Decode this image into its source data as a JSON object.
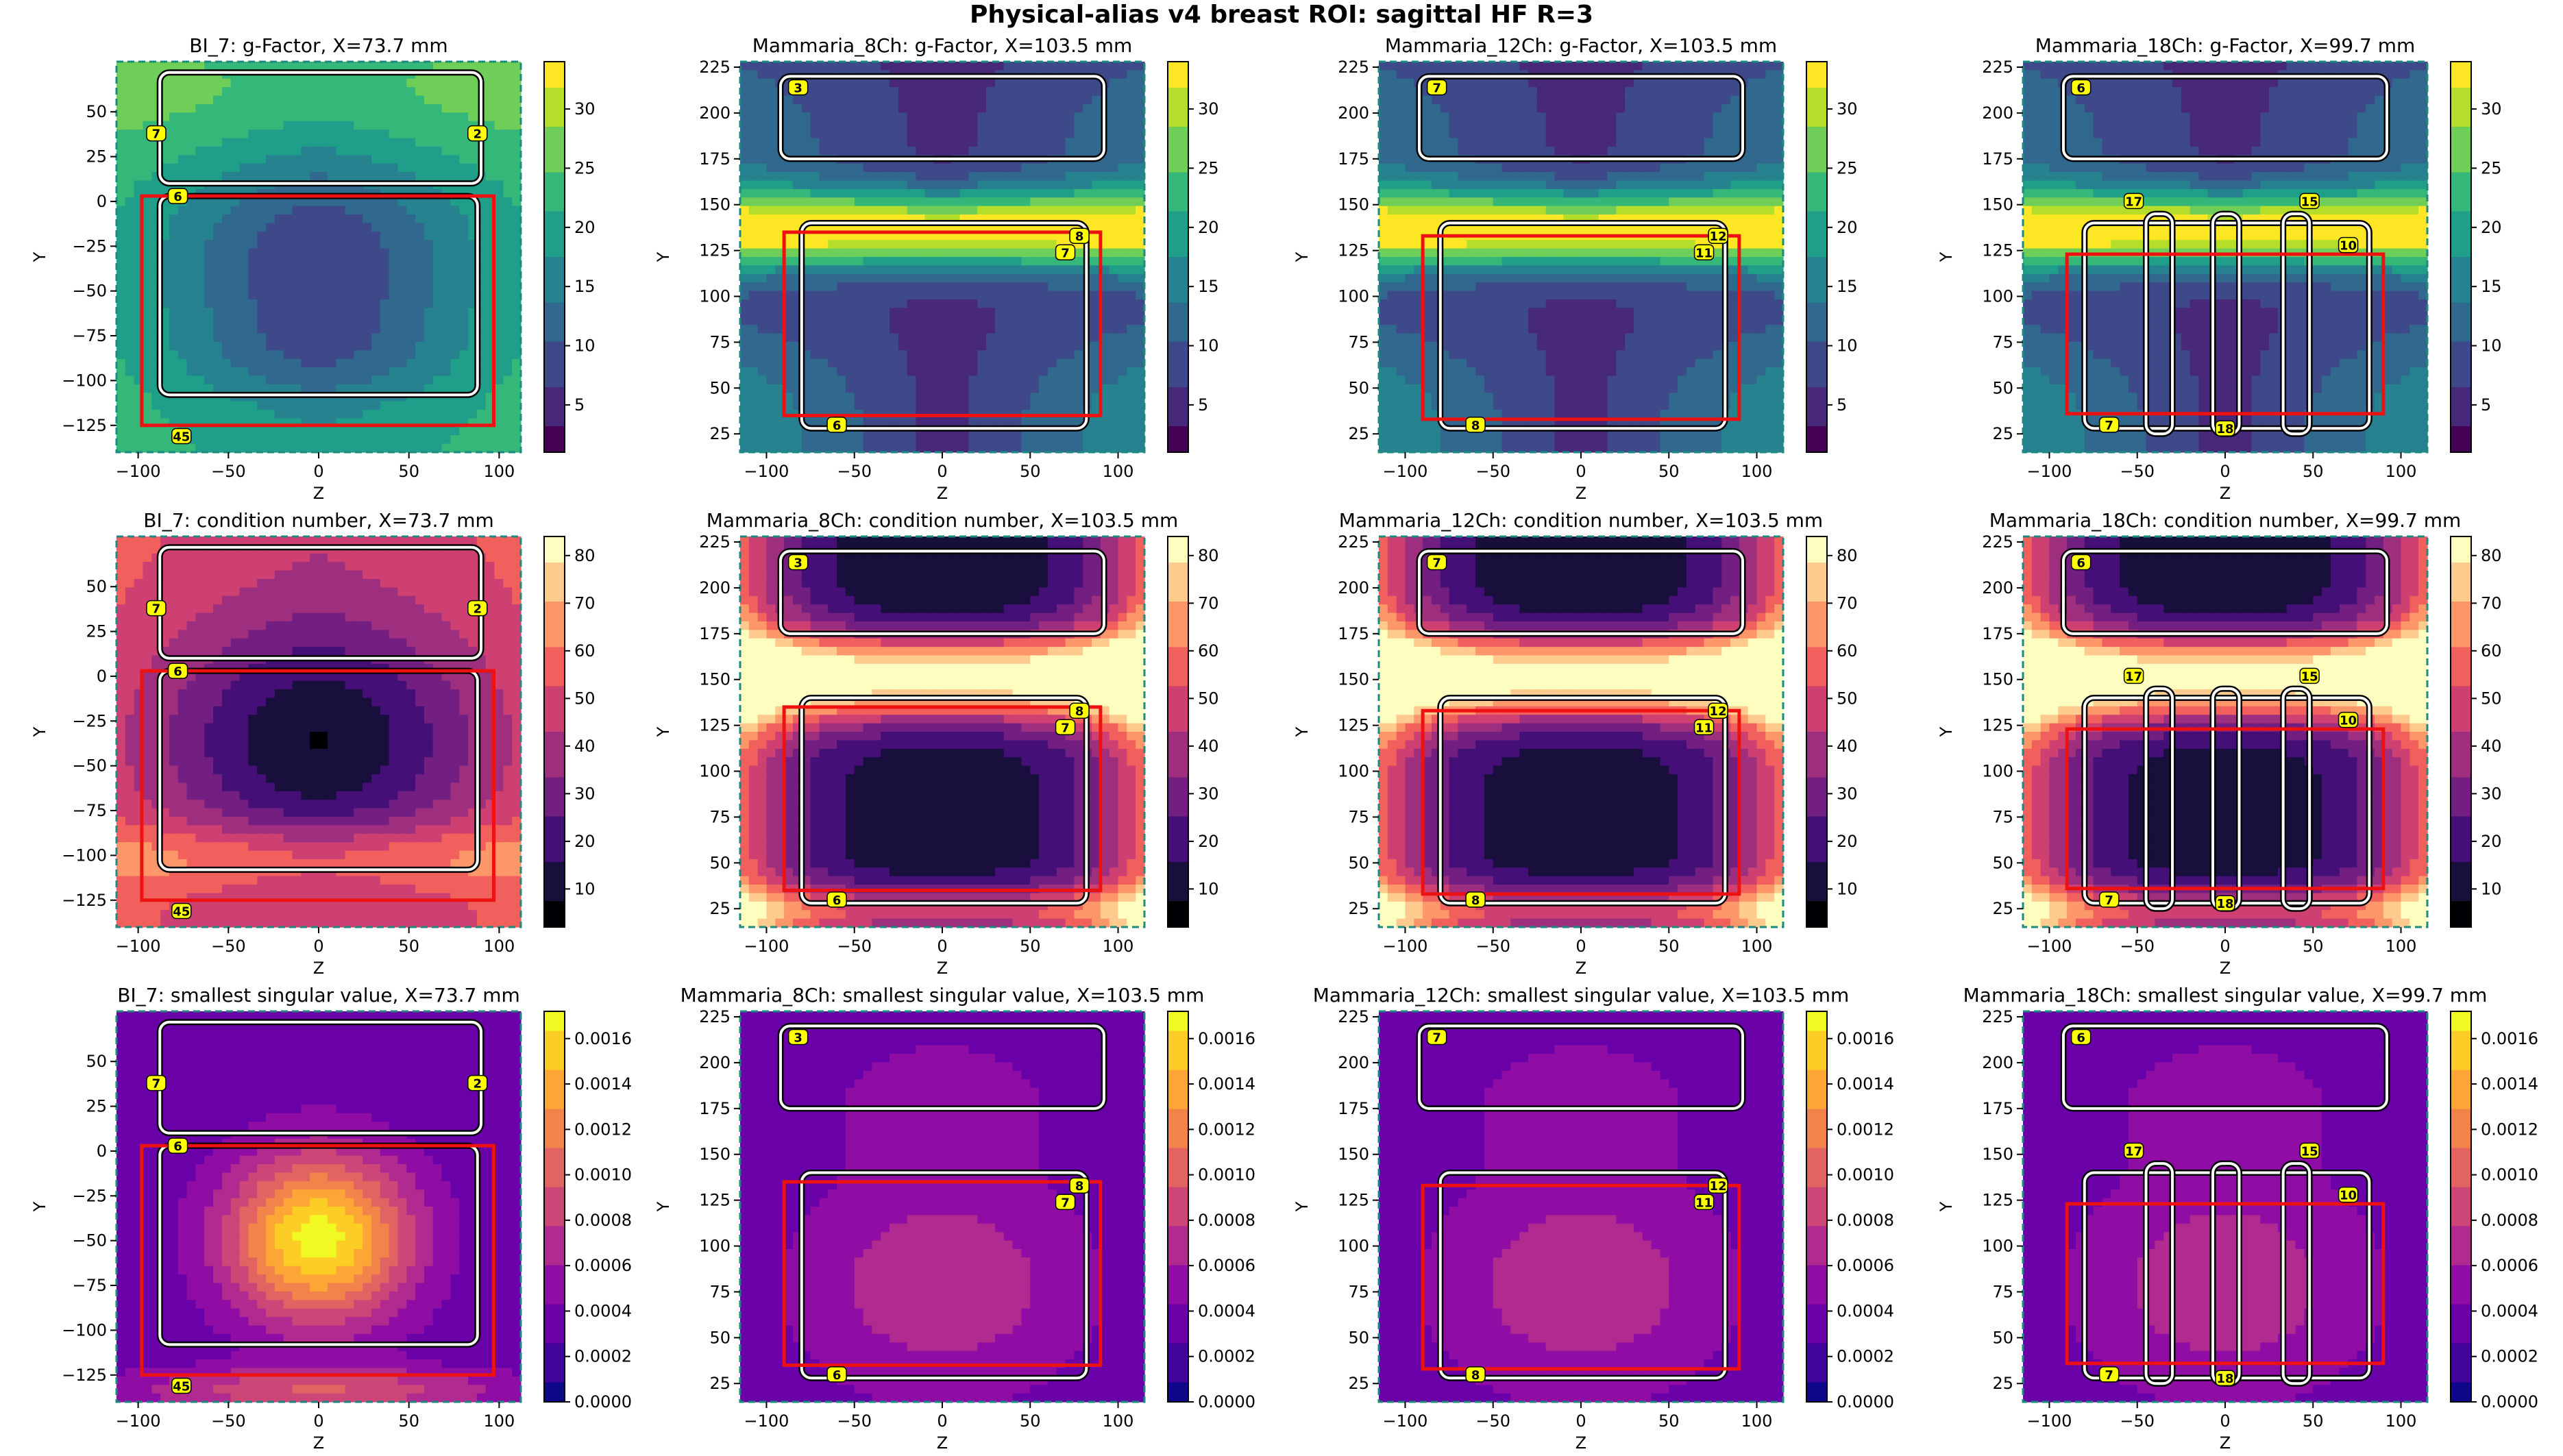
{
  "figure": {
    "title": "Physical-alias v4 breast ROI: sagittal HF R=3"
  },
  "colors": {
    "roi": "#ee1111",
    "coil_outer": "#000000",
    "coil_inner": "#ffffff",
    "label_fill": "#ffff00",
    "frame": "#1c8a7e"
  },
  "colormaps": {
    "viridis": [
      "#440154",
      "#482878",
      "#3e4989",
      "#31688e",
      "#26828e",
      "#1f9e89",
      "#35b779",
      "#6ece58",
      "#b5de2b",
      "#fde725"
    ],
    "magma": [
      "#000004",
      "#180f3d",
      "#440f76",
      "#721f81",
      "#9e2f7f",
      "#cd4071",
      "#f1605d",
      "#fd9668",
      "#feca8d",
      "#fcfdbf"
    ],
    "plasma": [
      "#0d0887",
      "#41049d",
      "#6a00a8",
      "#8f0da4",
      "#b12a90",
      "#cc4778",
      "#e16462",
      "#f2844b",
      "#fca636",
      "#fcce25",
      "#f0f921"
    ]
  },
  "chart_data": [
    {
      "type": "heatmap",
      "title": "BI_7: g-Factor, X=73.7 mm",
      "xlabel": "Z",
      "ylabel": "Y",
      "colormap": "viridis",
      "xlim": [
        -112,
        112
      ],
      "ylim": [
        -140,
        78
      ],
      "xticks": [
        -100,
        -50,
        0,
        50,
        100
      ],
      "yticks": [
        50,
        25,
        0,
        -25,
        -50,
        -75,
        -100,
        -125
      ],
      "colorbar": {
        "range": [
          1,
          34
        ],
        "ticks": [
          5,
          10,
          15,
          20,
          25,
          30
        ]
      },
      "roi": {
        "z": [
          -98,
          97
        ],
        "y": [
          -125,
          3
        ]
      },
      "coil_labels": [
        "7",
        "2",
        "6",
        "45"
      ]
    },
    {
      "type": "heatmap",
      "title": "Mammaria_8Ch: g-Factor, X=103.5 mm",
      "xlabel": "Z",
      "ylabel": "Y",
      "colormap": "viridis",
      "xlim": [
        -115,
        115
      ],
      "ylim": [
        15,
        228
      ],
      "xticks": [
        -100,
        -50,
        0,
        50,
        100
      ],
      "yticks": [
        225,
        200,
        175,
        150,
        125,
        100,
        75,
        50,
        25
      ],
      "colorbar": {
        "range": [
          1,
          34
        ],
        "ticks": [
          5,
          10,
          15,
          20,
          25,
          30
        ]
      },
      "roi": {
        "z": [
          -90,
          90
        ],
        "y": [
          35,
          135
        ]
      },
      "coil_labels": [
        "3",
        "8",
        "7",
        "6"
      ]
    },
    {
      "type": "heatmap",
      "title": "Mammaria_12Ch: g-Factor, X=103.5 mm",
      "xlabel": "Z",
      "ylabel": "Y",
      "colormap": "viridis",
      "xlim": [
        -115,
        115
      ],
      "ylim": [
        15,
        228
      ],
      "xticks": [
        -100,
        -50,
        0,
        50,
        100
      ],
      "yticks": [
        225,
        200,
        175,
        150,
        125,
        100,
        75,
        50,
        25
      ],
      "colorbar": {
        "range": [
          1,
          34
        ],
        "ticks": [
          5,
          10,
          15,
          20,
          25,
          30
        ]
      },
      "roi": {
        "z": [
          -90,
          90
        ],
        "y": [
          33,
          133
        ]
      },
      "coil_labels": [
        "7",
        "12",
        "11",
        "8"
      ]
    },
    {
      "type": "heatmap",
      "title": "Mammaria_18Ch: g-Factor, X=99.7 mm",
      "xlabel": "Z",
      "ylabel": "Y",
      "colormap": "viridis",
      "xlim": [
        -115,
        115
      ],
      "ylim": [
        15,
        228
      ],
      "xticks": [
        -100,
        -50,
        0,
        50,
        100
      ],
      "yticks": [
        225,
        200,
        175,
        150,
        125,
        100,
        75,
        50,
        25
      ],
      "colorbar": {
        "range": [
          1,
          34
        ],
        "ticks": [
          5,
          10,
          15,
          20,
          25,
          30
        ]
      },
      "roi": {
        "z": [
          -90,
          90
        ],
        "y": [
          36,
          123
        ]
      },
      "coil_labels": [
        "6",
        "17",
        "15",
        "10",
        "7",
        "18"
      ]
    },
    {
      "type": "heatmap",
      "title": "BI_7: condition number, X=73.7 mm",
      "xlabel": "Z",
      "ylabel": "Y",
      "colormap": "magma",
      "xlim": [
        -112,
        112
      ],
      "ylim": [
        -140,
        78
      ],
      "xticks": [
        -100,
        -50,
        0,
        50,
        100
      ],
      "yticks": [
        50,
        25,
        0,
        -25,
        -50,
        -75,
        -100,
        -125
      ],
      "colorbar": {
        "range": [
          2,
          84
        ],
        "ticks": [
          10,
          20,
          30,
          40,
          50,
          60,
          70,
          80
        ]
      },
      "roi": {
        "z": [
          -98,
          97
        ],
        "y": [
          -125,
          3
        ]
      },
      "coil_labels": [
        "7",
        "2",
        "6",
        "45"
      ]
    },
    {
      "type": "heatmap",
      "title": "Mammaria_8Ch: condition number, X=103.5 mm",
      "xlabel": "Z",
      "ylabel": "Y",
      "colormap": "magma",
      "xlim": [
        -115,
        115
      ],
      "ylim": [
        15,
        228
      ],
      "xticks": [
        -100,
        -50,
        0,
        50,
        100
      ],
      "yticks": [
        225,
        200,
        175,
        150,
        125,
        100,
        75,
        50,
        25
      ],
      "colorbar": {
        "range": [
          2,
          84
        ],
        "ticks": [
          10,
          20,
          30,
          40,
          50,
          60,
          70,
          80
        ]
      },
      "roi": {
        "z": [
          -90,
          90
        ],
        "y": [
          35,
          135
        ]
      },
      "coil_labels": [
        "3",
        "8",
        "7",
        "6"
      ]
    },
    {
      "type": "heatmap",
      "title": "Mammaria_12Ch: condition number, X=103.5 mm",
      "xlabel": "Z",
      "ylabel": "Y",
      "colormap": "magma",
      "xlim": [
        -115,
        115
      ],
      "ylim": [
        15,
        228
      ],
      "xticks": [
        -100,
        -50,
        0,
        50,
        100
      ],
      "yticks": [
        225,
        200,
        175,
        150,
        125,
        100,
        75,
        50,
        25
      ],
      "colorbar": {
        "range": [
          2,
          84
        ],
        "ticks": [
          10,
          20,
          30,
          40,
          50,
          60,
          70,
          80
        ]
      },
      "roi": {
        "z": [
          -90,
          90
        ],
        "y": [
          33,
          133
        ]
      },
      "coil_labels": [
        "7",
        "12",
        "11",
        "8"
      ]
    },
    {
      "type": "heatmap",
      "title": "Mammaria_18Ch: condition number, X=99.7 mm",
      "xlabel": "Z",
      "ylabel": "Y",
      "colormap": "magma",
      "xlim": [
        -115,
        115
      ],
      "ylim": [
        15,
        228
      ],
      "xticks": [
        -100,
        -50,
        0,
        50,
        100
      ],
      "yticks": [
        225,
        200,
        175,
        150,
        125,
        100,
        75,
        50,
        25
      ],
      "colorbar": {
        "range": [
          2,
          84
        ],
        "ticks": [
          10,
          20,
          30,
          40,
          50,
          60,
          70,
          80
        ]
      },
      "roi": {
        "z": [
          -90,
          90
        ],
        "y": [
          36,
          123
        ]
      },
      "coil_labels": [
        "6",
        "17",
        "15",
        "10",
        "7",
        "18"
      ]
    },
    {
      "type": "heatmap",
      "title": "BI_7: smallest singular value, X=73.7 mm",
      "xlabel": "Z",
      "ylabel": "Y",
      "colormap": "plasma",
      "xlim": [
        -112,
        112
      ],
      "ylim": [
        -140,
        78
      ],
      "xticks": [
        -100,
        -50,
        0,
        50,
        100
      ],
      "yticks": [
        50,
        25,
        0,
        -25,
        -50,
        -75,
        -100,
        -125
      ],
      "colorbar": {
        "range": [
          0,
          0.00172
        ],
        "ticks": [
          "0.0000",
          "0.0002",
          "0.0004",
          "0.0006",
          "0.0008",
          "0.0010",
          "0.0012",
          "0.0014",
          "0.0016"
        ]
      },
      "roi": {
        "z": [
          -98,
          97
        ],
        "y": [
          -125,
          3
        ]
      },
      "coil_labels": [
        "7",
        "2",
        "6",
        "45"
      ]
    },
    {
      "type": "heatmap",
      "title": "Mammaria_8Ch: smallest singular value, X=103.5 mm",
      "xlabel": "Z",
      "ylabel": "Y",
      "colormap": "plasma",
      "xlim": [
        -115,
        115
      ],
      "ylim": [
        15,
        228
      ],
      "xticks": [
        -100,
        -50,
        0,
        50,
        100
      ],
      "yticks": [
        225,
        200,
        175,
        150,
        125,
        100,
        75,
        50,
        25
      ],
      "colorbar": {
        "range": [
          0,
          0.00172
        ],
        "ticks": [
          "0.0000",
          "0.0002",
          "0.0004",
          "0.0006",
          "0.0008",
          "0.0010",
          "0.0012",
          "0.0014",
          "0.0016"
        ]
      },
      "roi": {
        "z": [
          -90,
          90
        ],
        "y": [
          35,
          135
        ]
      },
      "coil_labels": [
        "3",
        "8",
        "7",
        "6"
      ]
    },
    {
      "type": "heatmap",
      "title": "Mammaria_12Ch: smallest singular value, X=103.5 mm",
      "xlabel": "Z",
      "ylabel": "Y",
      "colormap": "plasma",
      "xlim": [
        -115,
        115
      ],
      "ylim": [
        15,
        228
      ],
      "xticks": [
        -100,
        -50,
        0,
        50,
        100
      ],
      "yticks": [
        225,
        200,
        175,
        150,
        125,
        100,
        75,
        50,
        25
      ],
      "colorbar": {
        "range": [
          0,
          0.00172
        ],
        "ticks": [
          "0.0000",
          "0.0002",
          "0.0004",
          "0.0006",
          "0.0008",
          "0.0010",
          "0.0012",
          "0.0014",
          "0.0016"
        ]
      },
      "roi": {
        "z": [
          -90,
          90
        ],
        "y": [
          33,
          133
        ]
      },
      "coil_labels": [
        "7",
        "12",
        "11",
        "8"
      ]
    },
    {
      "type": "heatmap",
      "title": "Mammaria_18Ch: smallest singular value, X=99.7 mm",
      "xlabel": "Z",
      "ylabel": "Y",
      "colormap": "plasma",
      "xlim": [
        -115,
        115
      ],
      "ylim": [
        15,
        228
      ],
      "xticks": [
        -100,
        -50,
        0,
        50,
        100
      ],
      "yticks": [
        225,
        200,
        175,
        150,
        125,
        100,
        75,
        50,
        25
      ],
      "colorbar": {
        "range": [
          0,
          0.00172
        ],
        "ticks": [
          "0.0000",
          "0.0002",
          "0.0004",
          "0.0006",
          "0.0008",
          "0.0010",
          "0.0012",
          "0.0014",
          "0.0016"
        ]
      },
      "roi": {
        "z": [
          -90,
          90
        ],
        "y": [
          36,
          123
        ]
      },
      "coil_labels": [
        "6",
        "17",
        "15",
        "10",
        "7",
        "18"
      ]
    }
  ]
}
